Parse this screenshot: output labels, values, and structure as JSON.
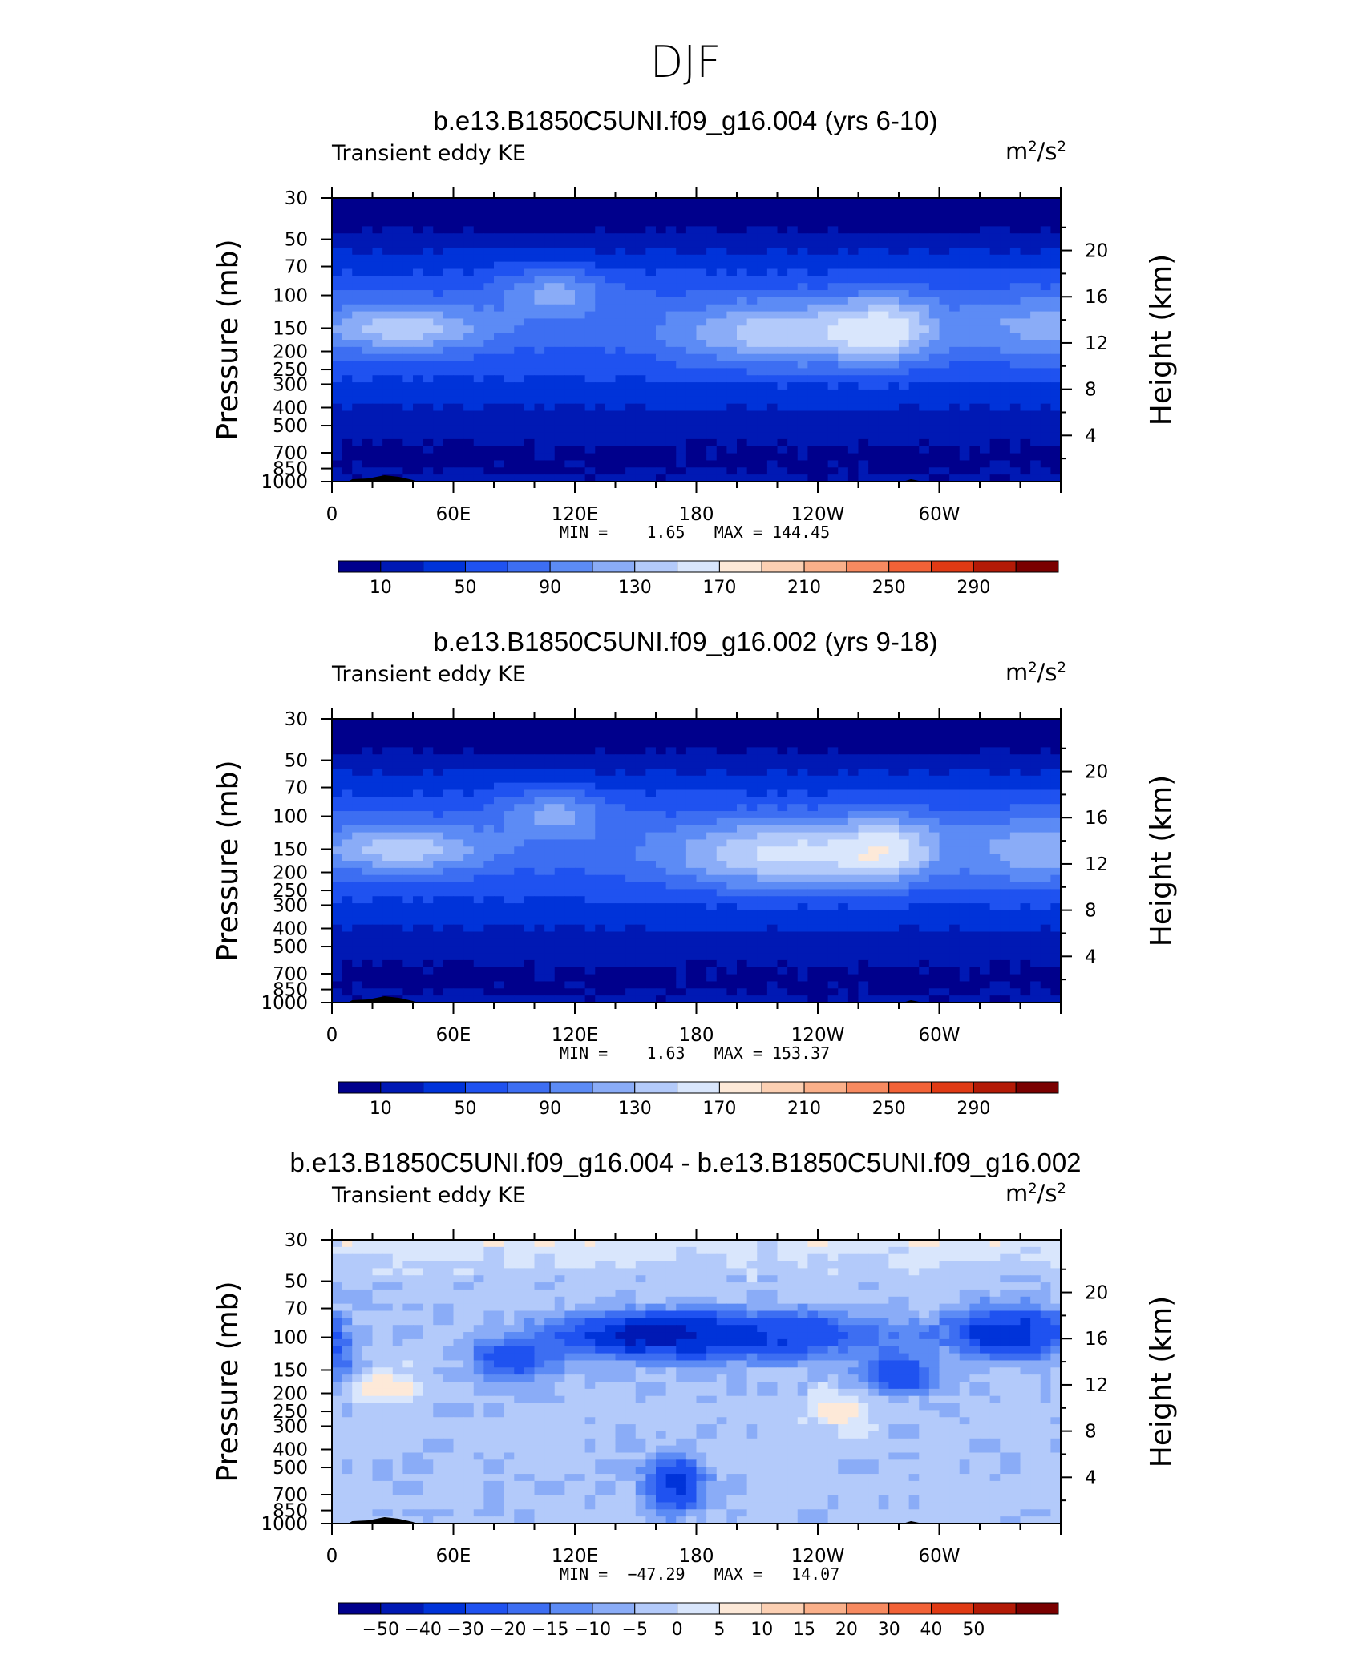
{
  "figure": {
    "title": "DJF"
  },
  "colorscales": {
    "ke": [
      "#00008c",
      "#0019b4",
      "#0033d9",
      "#1f52f0",
      "#3d6ef2",
      "#5c8bf5",
      "#8aacf7",
      "#b3cafa",
      "#d9e6fc",
      "#fde9d8",
      "#fcd0b3",
      "#fab08a",
      "#f78a60",
      "#f26237",
      "#e03a14",
      "#b31a06",
      "#7a0000"
    ],
    "diff": [
      "#00008c",
      "#0019b4",
      "#0033d9",
      "#1f52f0",
      "#3d6ef2",
      "#5c8bf5",
      "#8aacf7",
      "#b3cafa",
      "#d9e6fc",
      "#fde9d8",
      "#fcd0b3",
      "#fab08a",
      "#f78a60",
      "#f26237",
      "#e03a14",
      "#b31a06",
      "#7a0000"
    ]
  },
  "panels": [
    {
      "title": "b.e13.B1850C5UNI.f09_g16.004 (yrs 6-10)",
      "subtitle_left": "Transient eddy KE",
      "units_base": "m",
      "units_exp1": "2",
      "units_mid": "/s",
      "units_exp2": "2",
      "stats": {
        "min_label": "MIN =",
        "min": "1.65",
        "max_label": "MAX =",
        "max": "144.45"
      },
      "colorbar_labels": [
        "10",
        "50",
        "90",
        "130",
        "170",
        "210",
        "250",
        "290"
      ],
      "scale": "ke"
    },
    {
      "title": "b.e13.B1850C5UNI.f09_g16.002 (yrs 9-18)",
      "subtitle_left": "Transient eddy KE",
      "units_base": "m",
      "units_exp1": "2",
      "units_mid": "/s",
      "units_exp2": "2",
      "stats": {
        "min_label": "MIN =",
        "min": "1.63",
        "max_label": "MAX =",
        "max": "153.37"
      },
      "colorbar_labels": [
        "10",
        "50",
        "90",
        "130",
        "170",
        "210",
        "250",
        "290"
      ],
      "scale": "ke"
    },
    {
      "title": "b.e13.B1850C5UNI.f09_g16.004 - b.e13.B1850C5UNI.f09_g16.002",
      "subtitle_left": "Transient eddy KE",
      "units_base": "m",
      "units_exp1": "2",
      "units_mid": "/s",
      "units_exp2": "2",
      "stats": {
        "min_label": "MIN =",
        "min": "−47.29",
        "max_label": "MAX =",
        "max": "14.07"
      },
      "colorbar_labels": [
        "−50",
        "−40",
        "−30",
        "−20",
        "−15",
        "−10",
        "−5",
        "0",
        "5",
        "10",
        "15",
        "20",
        "30",
        "40",
        "50"
      ],
      "scale": "diff"
    }
  ],
  "chart_data": [
    {
      "type": "heatmap",
      "title": "b.e13.B1850C5UNI.f09_g16.004 (yrs 6-10)",
      "variable": "Transient eddy KE",
      "units": "m^2/s^2",
      "xlabel": "",
      "ylabel": "Pressure (mb)",
      "y2label": "Height (km)",
      "x_ticks": [
        "0",
        "60E",
        "120E",
        "180",
        "120W",
        "60W"
      ],
      "y_ticks": [
        "30",
        "50",
        "70",
        "100",
        "150",
        "200",
        "250",
        "300",
        "400",
        "500",
        "700",
        "850",
        "1000"
      ],
      "y2_ticks": [
        "20",
        "16",
        "12",
        "8",
        "4"
      ],
      "min": 1.65,
      "max": 144.45,
      "contour_levels": [
        10,
        30,
        50,
        70,
        90,
        110,
        130,
        150,
        170,
        190,
        210,
        230,
        250,
        270,
        290
      ]
    },
    {
      "type": "heatmap",
      "title": "b.e13.B1850C5UNI.f09_g16.002 (yrs 9-18)",
      "variable": "Transient eddy KE",
      "units": "m^2/s^2",
      "xlabel": "",
      "ylabel": "Pressure (mb)",
      "y2label": "Height (km)",
      "x_ticks": [
        "0",
        "60E",
        "120E",
        "180",
        "120W",
        "60W"
      ],
      "y_ticks": [
        "30",
        "50",
        "70",
        "100",
        "150",
        "200",
        "250",
        "300",
        "400",
        "500",
        "700",
        "850",
        "1000"
      ],
      "y2_ticks": [
        "20",
        "16",
        "12",
        "8",
        "4"
      ],
      "min": 1.63,
      "max": 153.37,
      "contour_levels": [
        10,
        30,
        50,
        70,
        90,
        110,
        130,
        150,
        170,
        190,
        210,
        230,
        250,
        270,
        290
      ]
    },
    {
      "type": "heatmap",
      "title": "b.e13.B1850C5UNI.f09_g16.004 - b.e13.B1850C5UNI.f09_g16.002",
      "variable": "Transient eddy KE",
      "units": "m^2/s^2",
      "xlabel": "",
      "ylabel": "Pressure (mb)",
      "y2label": "Height (km)",
      "x_ticks": [
        "0",
        "60E",
        "120E",
        "180",
        "120W",
        "60W"
      ],
      "y_ticks": [
        "30",
        "50",
        "70",
        "100",
        "150",
        "200",
        "250",
        "300",
        "400",
        "500",
        "700",
        "850",
        "1000"
      ],
      "y2_ticks": [
        "20",
        "16",
        "12",
        "8",
        "4"
      ],
      "min": -47.29,
      "max": 14.07,
      "contour_levels": [
        -50,
        -40,
        -30,
        -20,
        -15,
        -10,
        -5,
        0,
        5,
        10,
        15,
        20,
        30,
        40,
        50
      ]
    }
  ]
}
